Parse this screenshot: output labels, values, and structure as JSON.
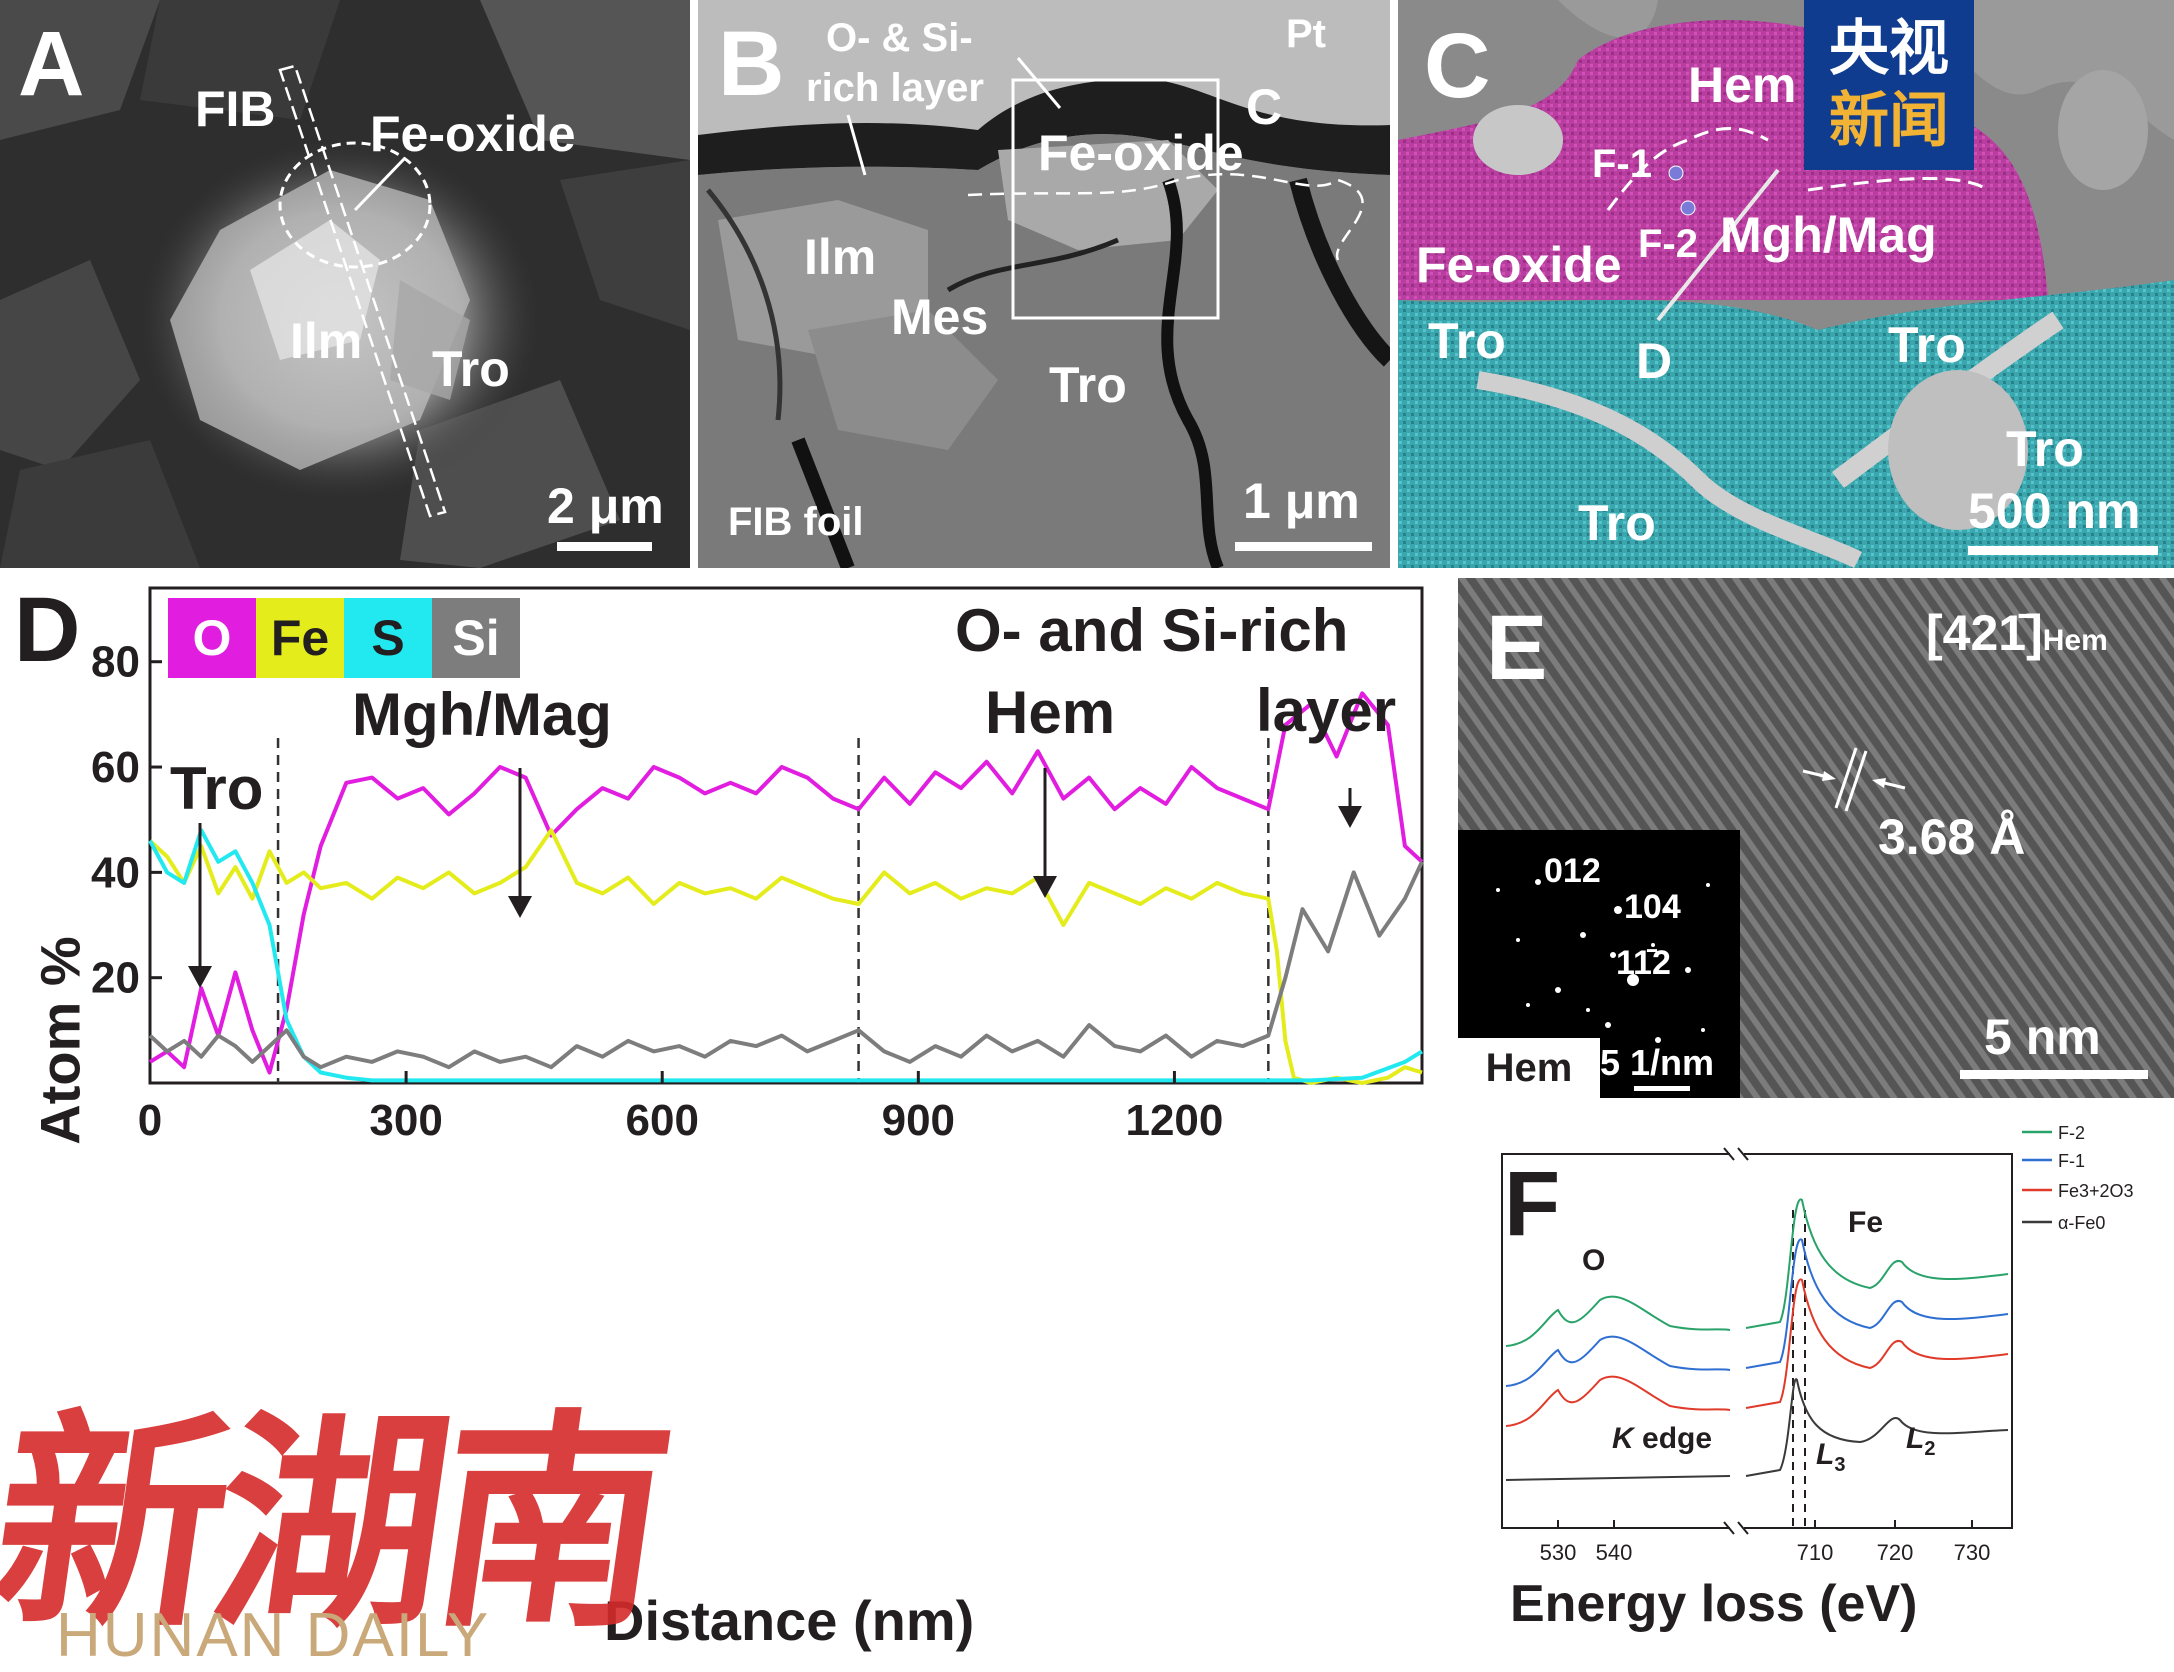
{
  "panelA": {
    "letter": "A",
    "labels": {
      "fib": "FIB",
      "feoxide": "Fe-oxide",
      "ilm": "Ilm",
      "tro": "Tro"
    },
    "scale": "2 μm"
  },
  "panelB": {
    "letter": "B",
    "labels": {
      "layer1": "O- & Si-",
      "layer2": "rich layer",
      "pt": "Pt",
      "c": "C",
      "feoxide": "Fe-oxide",
      "ilm": "Ilm",
      "mes": "Mes",
      "tro": "Tro",
      "foil": "FIB foil"
    },
    "scale": "1 μm"
  },
  "panelC": {
    "letter": "C",
    "labels": {
      "hem": "Hem",
      "f1": "F-1",
      "f2": "F-2",
      "mgh": "Mgh/Mag",
      "feoxide": "Fe-oxide",
      "tro1": "Tro",
      "tro2": "Tro",
      "tro3": "Tro",
      "tro4": "Tro",
      "d": "D"
    },
    "scale": "500 nm",
    "logo": {
      "line1": "央视",
      "line2": "新闻"
    }
  },
  "panelD": {
    "letter": "D",
    "legend": [
      {
        "name": "O",
        "color": "#e11de0"
      },
      {
        "name": "Fe",
        "color": "#e4ec1c"
      },
      {
        "name": "S",
        "color": "#22e8f0"
      },
      {
        "name": "Si",
        "color": "#7d7d7d"
      }
    ],
    "annotations": {
      "tro": "Tro",
      "mgh": "Mgh/Mag",
      "hem": "Hem",
      "layer1": "O- and Si-rich",
      "layer2": "layer"
    }
  },
  "chart_data": [
    {
      "type": "line",
      "xlabel": "Distance (nm)",
      "ylabel": "Atom %",
      "xlim": [
        0,
        1490
      ],
      "ylim": [
        0,
        94
      ],
      "xticks": [
        "0",
        "300",
        "600",
        "900",
        "1200"
      ],
      "yticks": [
        "20",
        "40",
        "60",
        "80"
      ],
      "boundaries_nm": [
        150,
        830,
        1310
      ],
      "series": [
        {
          "name": "O",
          "color": "#e11de0",
          "x": [
            0,
            20,
            40,
            60,
            80,
            100,
            120,
            140,
            160,
            180,
            200,
            230,
            260,
            290,
            320,
            350,
            380,
            410,
            440,
            470,
            500,
            530,
            560,
            590,
            620,
            650,
            680,
            710,
            740,
            770,
            800,
            830,
            860,
            890,
            920,
            950,
            980,
            1010,
            1040,
            1070,
            1100,
            1130,
            1160,
            1190,
            1220,
            1250,
            1280,
            1310,
            1330,
            1360,
            1390,
            1420,
            1450,
            1470,
            1490
          ],
          "y": [
            4,
            6,
            3,
            18,
            9,
            21,
            10,
            2,
            14,
            32,
            45,
            57,
            58,
            54,
            56,
            51,
            55,
            60,
            58,
            47,
            52,
            56,
            54,
            60,
            58,
            55,
            57,
            55,
            60,
            58,
            54,
            52,
            58,
            53,
            59,
            56,
            61,
            55,
            63,
            54,
            58,
            52,
            56,
            53,
            60,
            56,
            54,
            52,
            68,
            72,
            62,
            74,
            68,
            45,
            42
          ]
        },
        {
          "name": "Fe",
          "color": "#e4ec1c",
          "x": [
            0,
            20,
            40,
            60,
            80,
            100,
            120,
            140,
            160,
            180,
            200,
            230,
            260,
            290,
            320,
            350,
            380,
            410,
            440,
            470,
            500,
            530,
            560,
            590,
            620,
            650,
            680,
            710,
            740,
            770,
            800,
            830,
            860,
            890,
            920,
            950,
            980,
            1010,
            1040,
            1070,
            1100,
            1130,
            1160,
            1190,
            1220,
            1250,
            1280,
            1310,
            1320,
            1330,
            1340,
            1360,
            1390,
            1420,
            1450,
            1470,
            1490
          ],
          "y": [
            46,
            43,
            38,
            45,
            36,
            41,
            35,
            44,
            38,
            40,
            37,
            38,
            35,
            39,
            37,
            40,
            36,
            38,
            41,
            48,
            38,
            36,
            39,
            34,
            38,
            36,
            37,
            35,
            39,
            37,
            35,
            34,
            40,
            36,
            38,
            35,
            37,
            36,
            39,
            30,
            38,
            36,
            34,
            37,
            35,
            38,
            36,
            35,
            25,
            8,
            1,
            0,
            1,
            0,
            1,
            3,
            2
          ]
        },
        {
          "name": "S",
          "color": "#22e8f0",
          "x": [
            0,
            20,
            40,
            60,
            80,
            100,
            120,
            140,
            160,
            180,
            200,
            230,
            260,
            300,
            400,
            500,
            600,
            700,
            800,
            900,
            1000,
            1100,
            1200,
            1300,
            1320,
            1360,
            1420,
            1470,
            1490
          ],
          "y": [
            46,
            40,
            38,
            48,
            42,
            44,
            38,
            30,
            12,
            5,
            2,
            1,
            0.5,
            0.5,
            0.5,
            0.5,
            0.5,
            0.5,
            0.5,
            0.5,
            0.5,
            0.5,
            0.5,
            0.5,
            0.5,
            0.5,
            1,
            4,
            6
          ]
        },
        {
          "name": "Si",
          "color": "#7d7d7d",
          "x": [
            0,
            20,
            40,
            60,
            80,
            100,
            120,
            140,
            160,
            180,
            200,
            230,
            260,
            290,
            320,
            350,
            380,
            410,
            440,
            470,
            500,
            530,
            560,
            590,
            620,
            650,
            680,
            710,
            740,
            770,
            800,
            830,
            860,
            890,
            920,
            950,
            980,
            1010,
            1040,
            1070,
            1100,
            1130,
            1160,
            1190,
            1220,
            1250,
            1280,
            1310,
            1330,
            1350,
            1380,
            1410,
            1440,
            1470,
            1490
          ],
          "y": [
            9,
            6,
            8,
            5,
            9,
            7,
            4,
            7,
            10,
            5,
            3,
            5,
            4,
            6,
            5,
            3,
            6,
            4,
            5,
            3,
            7,
            5,
            8,
            6,
            7,
            5,
            8,
            7,
            9,
            6,
            8,
            10,
            6,
            4,
            7,
            5,
            9,
            6,
            8,
            5,
            11,
            7,
            6,
            9,
            5,
            8,
            7,
            9,
            20,
            33,
            25,
            40,
            28,
            35,
            42
          ]
        }
      ]
    },
    {
      "type": "line",
      "xlabel": "Energy loss (eV)",
      "xticks": [
        "530",
        "540",
        "710",
        "720",
        "730"
      ],
      "series": [
        {
          "name": "F-2",
          "color": "#2aa36a"
        },
        {
          "name": "F-1",
          "color": "#2f6fd1"
        },
        {
          "name": "Fe3+2O3",
          "color": "#e03b2a"
        },
        {
          "name": "α-Fe0",
          "color": "#3a3a3a"
        }
      ]
    }
  ],
  "panelE": {
    "letter": "E",
    "zone": "[421̄]",
    "zone_sub": "Hem",
    "dspacing": "3.68 Å",
    "scale": "5 nm",
    "inset": {
      "r1": "012",
      "r2": "104",
      "r3": "11̄2",
      "phase": "Hem",
      "scale": "5 1/nm"
    }
  },
  "panelF": {
    "letter": "F",
    "labels": {
      "o": "O",
      "fe": "Fe",
      "kedge": "K",
      "kedge2": "edge",
      "l3": "L",
      "l3s": "3",
      "l2": "L",
      "l2s": "2"
    },
    "legend": [
      "F-2",
      "F-1",
      "Fe3+2O3",
      "α-Fe0"
    ]
  },
  "watermark": {
    "cn": "新湖南",
    "en": "HUNAN DAILY"
  }
}
